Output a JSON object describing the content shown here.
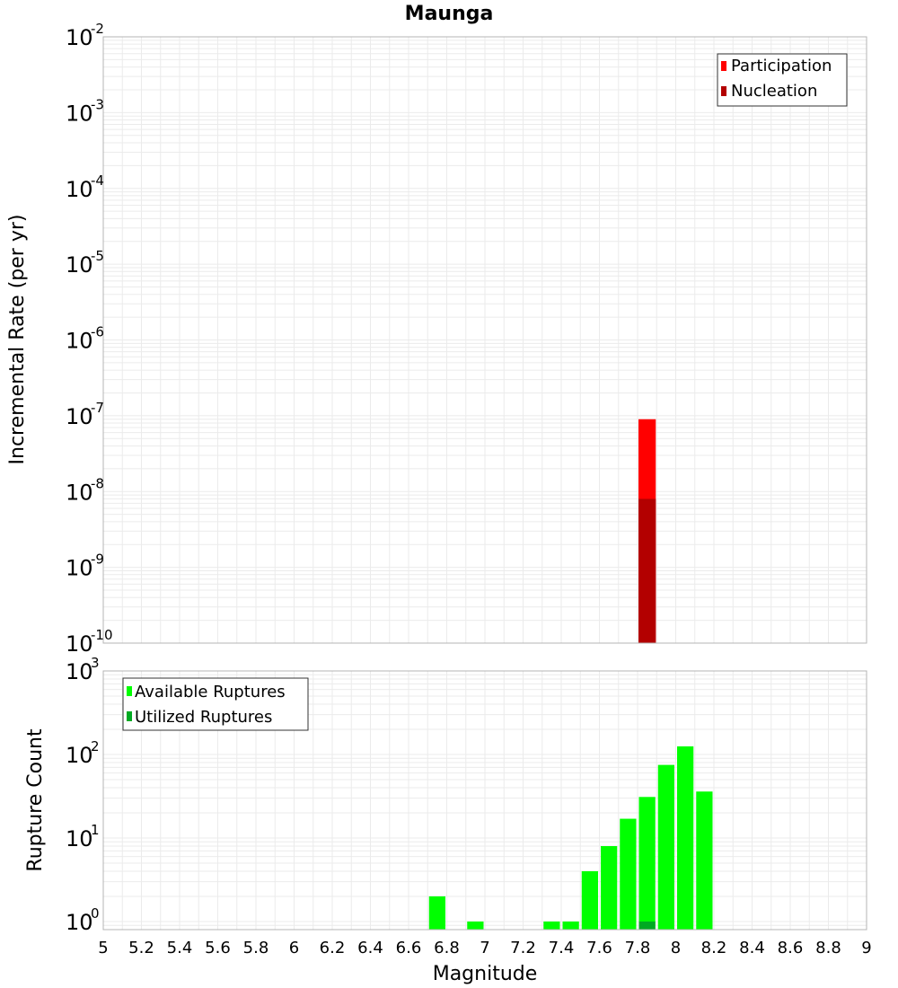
{
  "title": "Maunga",
  "x_axis_label": "Magnitude",
  "colors": {
    "participation": "#ff0000",
    "nucleation": "#b30000",
    "available": "#00ff00",
    "utilized": "#00aa22",
    "grid": "#ebebeb",
    "frame": "#b4b4b4"
  },
  "chart_data": [
    {
      "type": "bar",
      "panel": "top",
      "ylabel": "Incremental Rate (per yr)",
      "yscale": "log",
      "ylim": [
        1e-10,
        0.01
      ],
      "xlim": [
        5,
        9
      ],
      "grid": true,
      "legend_position": "top-right",
      "y_ticks": [
        {
          "base": "10",
          "exp": "-2"
        },
        {
          "base": "10",
          "exp": "-3"
        },
        {
          "base": "10",
          "exp": "-4"
        },
        {
          "base": "10",
          "exp": "-5"
        },
        {
          "base": "10",
          "exp": "-6"
        },
        {
          "base": "10",
          "exp": "-7"
        },
        {
          "base": "10",
          "exp": "-8"
        },
        {
          "base": "10",
          "exp": "-9"
        },
        {
          "base": "10",
          "exp": "-10"
        }
      ],
      "series": [
        {
          "name": "Participation",
          "color": "#ff0000",
          "points": [
            {
              "x": 7.85,
              "y": 9e-08
            }
          ]
        },
        {
          "name": "Nucleation",
          "color": "#b30000",
          "points": [
            {
              "x": 7.85,
              "y": 8e-09
            }
          ]
        }
      ]
    },
    {
      "type": "bar",
      "panel": "bottom",
      "ylabel": "Rupture Count",
      "yscale": "log",
      "ylim": [
        0.8,
        1000
      ],
      "xlim": [
        5,
        9
      ],
      "grid": true,
      "legend_position": "top-left",
      "y_ticks": [
        {
          "base": "10",
          "exp": "3"
        },
        {
          "base": "10",
          "exp": "2"
        },
        {
          "base": "10",
          "exp": "1"
        },
        {
          "base": "10",
          "exp": "0"
        }
      ],
      "series": [
        {
          "name": "Available Ruptures",
          "color": "#00ff00",
          "points": [
            {
              "x": 6.75,
              "y": 2
            },
            {
              "x": 6.95,
              "y": 1
            },
            {
              "x": 7.35,
              "y": 1
            },
            {
              "x": 7.45,
              "y": 1
            },
            {
              "x": 7.55,
              "y": 4
            },
            {
              "x": 7.65,
              "y": 8
            },
            {
              "x": 7.75,
              "y": 17
            },
            {
              "x": 7.85,
              "y": 31
            },
            {
              "x": 7.95,
              "y": 75
            },
            {
              "x": 8.05,
              "y": 125
            },
            {
              "x": 8.15,
              "y": 36
            }
          ]
        },
        {
          "name": "Utilized Ruptures",
          "color": "#00aa22",
          "points": [
            {
              "x": 7.85,
              "y": 1
            }
          ]
        }
      ]
    }
  ],
  "x_ticks": [
    "5",
    "5.2",
    "5.4",
    "5.6",
    "5.8",
    "6",
    "6.2",
    "6.4",
    "6.6",
    "6.8",
    "7",
    "7.2",
    "7.4",
    "7.6",
    "7.8",
    "8",
    "8.2",
    "8.4",
    "8.6",
    "8.8",
    "9"
  ]
}
